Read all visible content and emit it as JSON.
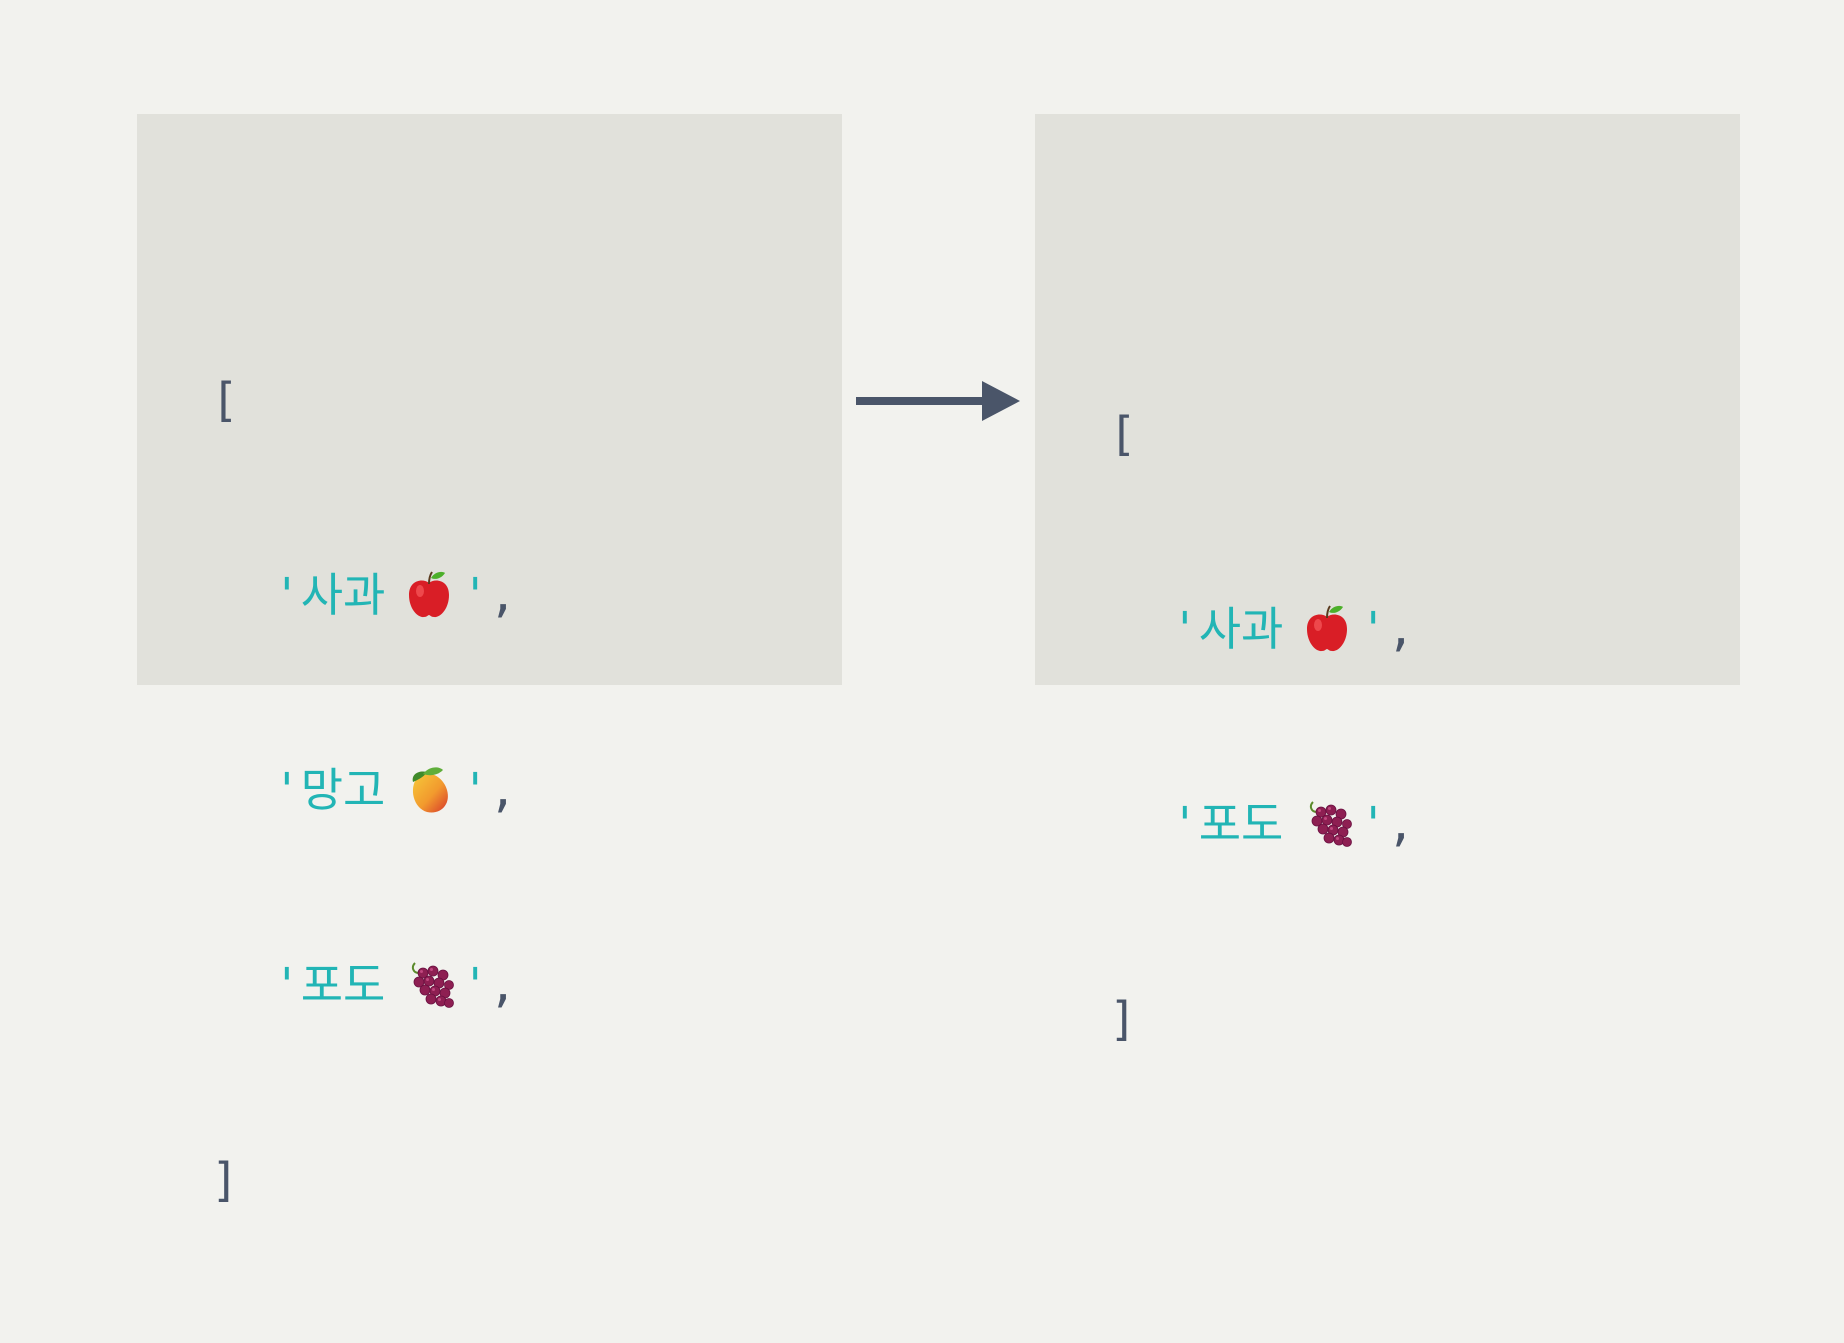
{
  "before": {
    "open_bracket": "[",
    "close_bracket": "]",
    "items": [
      {
        "label": "사과",
        "icon": "apple-icon"
      },
      {
        "label": "망고",
        "icon": "mango-icon"
      },
      {
        "label": "포도",
        "icon": "grapes-icon"
      }
    ]
  },
  "after": {
    "open_bracket": "[",
    "close_bracket": "]",
    "items": [
      {
        "label": "사과",
        "icon": "apple-icon"
      },
      {
        "label": "포도",
        "icon": "grapes-icon"
      }
    ]
  },
  "symbols": {
    "quote": "'",
    "comma": ","
  },
  "colors": {
    "background": "#f2f2ee",
    "panel": "#e1e1db",
    "string": "#22b5b5",
    "punctuation": "#4a5569",
    "arrow": "#4a5569"
  }
}
